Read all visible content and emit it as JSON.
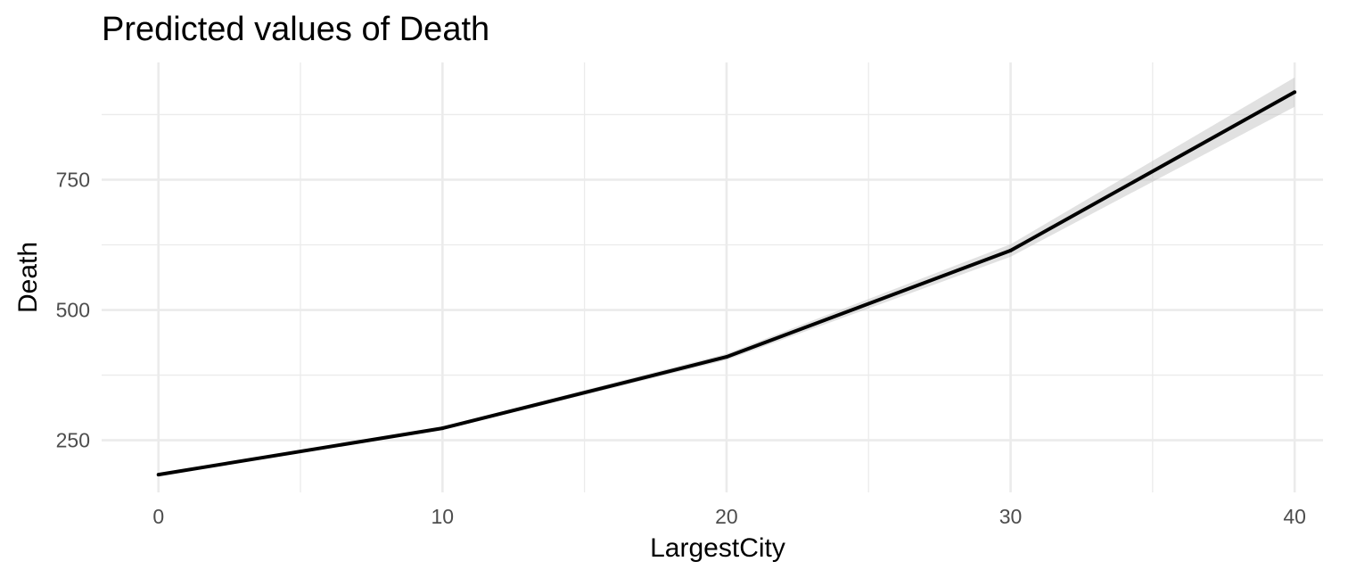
{
  "chart_data": {
    "type": "line",
    "title": "Predicted values of Death",
    "xlabel": "LargestCity",
    "ylabel": "Death",
    "x_ticks": [
      0,
      10,
      20,
      30,
      40
    ],
    "y_ticks": [
      250,
      500,
      750
    ],
    "xlim": [
      -2,
      41
    ],
    "ylim": [
      150,
      975
    ],
    "grid": true,
    "legend": "none",
    "series": [
      {
        "x": [
          0,
          10,
          20,
          30,
          40
        ],
        "y": [
          184,
          273,
          410,
          614,
          918
        ],
        "ci_low": [
          182,
          270,
          404,
          602,
          890
        ],
        "ci_high": [
          186,
          276,
          416,
          626,
          946
        ],
        "color": "#000000",
        "band_color": "#bdbdbd"
      }
    ]
  }
}
